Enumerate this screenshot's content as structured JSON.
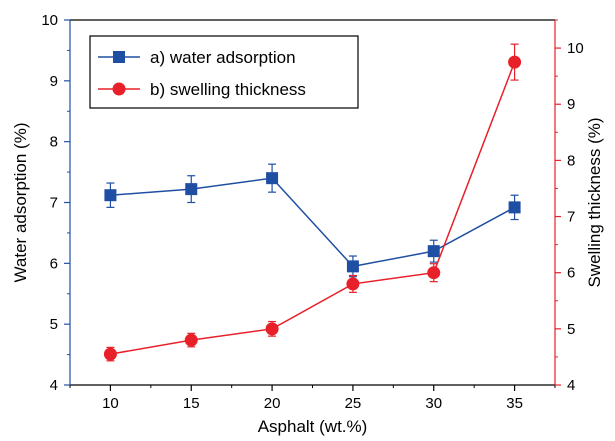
{
  "chart_data": {
    "type": "line",
    "title": "",
    "xlabel": "Asphalt (wt.%)",
    "ylabel": "Water adsorption (%)",
    "y2label": "Swelling thickness (%)",
    "x": [
      10,
      15,
      20,
      25,
      30,
      35
    ],
    "xlim": [
      7.5,
      37.5
    ],
    "ylim": [
      4,
      10
    ],
    "y2lim": [
      4,
      10.5
    ],
    "xticks": [
      "10",
      "15",
      "20",
      "25",
      "30",
      "35"
    ],
    "yticks": [
      "4",
      "5",
      "6",
      "7",
      "8",
      "9",
      "10"
    ],
    "y2ticks": [
      "4",
      "5",
      "6",
      "7",
      "8",
      "9",
      "10"
    ],
    "legend_position": "top-left",
    "series": [
      {
        "name": "a) water adsorption",
        "axis": "left",
        "marker": "square",
        "color": "#1f4fa3",
        "values": [
          7.12,
          7.22,
          7.4,
          5.95,
          6.2,
          6.92
        ],
        "errors": [
          0.2,
          0.22,
          0.23,
          0.17,
          0.18,
          0.2
        ]
      },
      {
        "name": "b) swelling thickness",
        "axis": "right",
        "marker": "circle",
        "color": "#e8202a",
        "values": [
          4.55,
          4.8,
          5.0,
          5.8,
          6.0,
          9.75
        ],
        "errors": [
          0.12,
          0.12,
          0.13,
          0.15,
          0.16,
          0.32
        ]
      }
    ]
  }
}
